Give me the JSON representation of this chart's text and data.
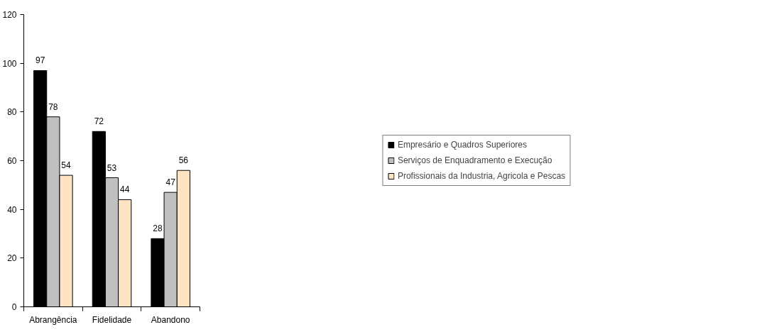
{
  "chart_data": {
    "type": "bar",
    "categories": [
      "Abrangência",
      "Fidelidade",
      "Abandono"
    ],
    "series": [
      {
        "name": "Empresário e Quadros Superiores",
        "color": "#000000",
        "values": [
          97,
          72,
          28
        ]
      },
      {
        "name": "Serviços de Enquadramento e Execução",
        "color": "#c0c0c0",
        "values": [
          78,
          53,
          47
        ]
      },
      {
        "name": "Profissionais da Industria, Agricola e Pescas",
        "color": "#ffe4c4",
        "values": [
          54,
          44,
          56
        ]
      }
    ],
    "ylim": [
      0,
      120
    ],
    "yticks": [
      0,
      20,
      40,
      60,
      80,
      100,
      120
    ],
    "grid": false,
    "legend": "right",
    "data_labels": true
  }
}
